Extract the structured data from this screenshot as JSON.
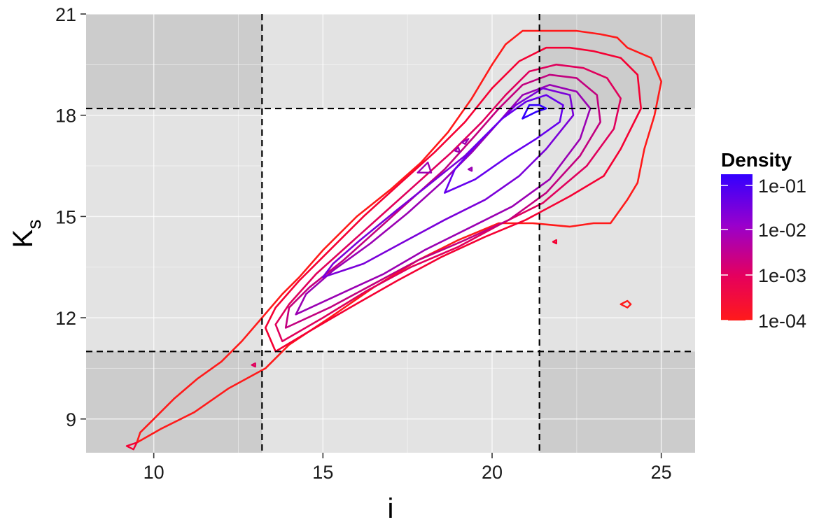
{
  "chart_data": {
    "type": "contour",
    "xlabel": "i",
    "ylabel": "K",
    "ylabel_subscript": "s",
    "xlim": [
      8,
      26
    ],
    "ylim": [
      8,
      21
    ],
    "x_ticks": [
      10,
      15,
      20,
      25
    ],
    "y_ticks": [
      9,
      12,
      15,
      18,
      21
    ],
    "grid": true,
    "reference_lines": {
      "vertical": [
        13.2,
        21.4
      ],
      "horizontal": [
        11.0,
        18.2
      ],
      "style": "dashed"
    },
    "shaded_regions": {
      "corner_color": "#cccccc",
      "edge_color": "#e3e3e3",
      "center_color": "#ffffff"
    },
    "legend": {
      "title": "Density",
      "position": "right",
      "labels": [
        "1e-01",
        "1e-02",
        "1e-03",
        "1e-04"
      ],
      "color_high": "#3300ff",
      "color_low": "#ff1a1a"
    },
    "contours": [
      {
        "level": "1e-04",
        "color": "#ff1a1a",
        "points": [
          [
            9.5,
            8.3
          ],
          [
            10.2,
            8.7
          ],
          [
            11.2,
            9.2
          ],
          [
            12.2,
            9.9
          ],
          [
            13.3,
            10.5
          ],
          [
            14.0,
            11.2
          ],
          [
            15.2,
            12.0
          ],
          [
            16.5,
            12.9
          ],
          [
            17.8,
            13.7
          ],
          [
            19.0,
            14.3
          ],
          [
            20.2,
            14.8
          ],
          [
            21.2,
            14.8
          ],
          [
            22.3,
            14.7
          ],
          [
            23.0,
            14.8
          ],
          [
            23.5,
            14.8
          ],
          [
            24.0,
            15.5
          ],
          [
            24.3,
            16.0
          ],
          [
            24.5,
            17.0
          ],
          [
            24.8,
            18.0
          ],
          [
            25.0,
            19.0
          ],
          [
            24.7,
            19.7
          ],
          [
            24.0,
            20.0
          ],
          [
            23.7,
            20.3
          ],
          [
            23.2,
            20.4
          ],
          [
            22.5,
            20.5
          ],
          [
            21.6,
            20.5
          ],
          [
            20.9,
            20.5
          ],
          [
            20.4,
            20.1
          ],
          [
            20.0,
            19.5
          ],
          [
            19.4,
            18.5
          ],
          [
            18.7,
            17.5
          ],
          [
            17.9,
            16.6
          ],
          [
            17.0,
            15.8
          ],
          [
            16.0,
            15.0
          ],
          [
            15.0,
            14.0
          ],
          [
            14.3,
            13.2
          ],
          [
            13.8,
            12.7
          ],
          [
            13.2,
            12.0
          ],
          [
            12.6,
            11.3
          ],
          [
            12.0,
            10.7
          ],
          [
            11.3,
            10.2
          ],
          [
            10.6,
            9.6
          ],
          [
            10.0,
            9.0
          ],
          [
            9.6,
            8.6
          ],
          [
            9.5,
            8.3
          ]
        ]
      },
      {
        "level": "1e-03",
        "color": "#f50033",
        "points": [
          [
            13.6,
            11.0
          ],
          [
            14.6,
            11.6
          ],
          [
            15.8,
            12.3
          ],
          [
            17.2,
            13.1
          ],
          [
            18.5,
            13.8
          ],
          [
            19.8,
            14.4
          ],
          [
            21.0,
            14.9
          ],
          [
            22.3,
            15.6
          ],
          [
            23.3,
            16.2
          ],
          [
            23.8,
            17.0
          ],
          [
            24.4,
            18.2
          ],
          [
            24.3,
            19.2
          ],
          [
            23.8,
            19.7
          ],
          [
            23.0,
            19.9
          ],
          [
            22.3,
            20.0
          ],
          [
            21.6,
            20.0
          ],
          [
            20.8,
            19.6
          ],
          [
            20.0,
            18.8
          ],
          [
            19.2,
            17.8
          ],
          [
            18.3,
            16.9
          ],
          [
            17.3,
            16.0
          ],
          [
            16.2,
            15.0
          ],
          [
            15.2,
            14.0
          ],
          [
            14.3,
            13.1
          ],
          [
            13.6,
            12.3
          ],
          [
            13.3,
            11.7
          ],
          [
            13.6,
            11.0
          ]
        ]
      },
      {
        "level": "3e-03",
        "color": "#e0005c",
        "points": [
          [
            13.8,
            11.3
          ],
          [
            15.0,
            12.0
          ],
          [
            16.3,
            12.8
          ],
          [
            17.6,
            13.5
          ],
          [
            19.0,
            14.1
          ],
          [
            20.3,
            14.8
          ],
          [
            21.5,
            15.4
          ],
          [
            22.8,
            16.5
          ],
          [
            23.6,
            17.6
          ],
          [
            23.8,
            18.5
          ],
          [
            23.4,
            19.1
          ],
          [
            22.7,
            19.4
          ],
          [
            21.9,
            19.5
          ],
          [
            21.1,
            19.3
          ],
          [
            20.4,
            18.6
          ],
          [
            19.7,
            17.8
          ],
          [
            18.8,
            16.9
          ],
          [
            17.8,
            16.0
          ],
          [
            16.8,
            15.1
          ],
          [
            15.8,
            14.2
          ],
          [
            14.8,
            13.3
          ],
          [
            14.0,
            12.4
          ],
          [
            13.6,
            11.8
          ],
          [
            13.8,
            11.3
          ]
        ]
      },
      {
        "level": "1e-02",
        "color": "#c2007f",
        "points": [
          [
            13.9,
            11.7
          ],
          [
            15.2,
            12.3
          ],
          [
            16.5,
            13.0
          ],
          [
            17.8,
            13.7
          ],
          [
            19.2,
            14.3
          ],
          [
            20.5,
            14.9
          ],
          [
            21.6,
            15.7
          ],
          [
            22.6,
            16.8
          ],
          [
            23.2,
            17.8
          ],
          [
            23.1,
            18.6
          ],
          [
            22.5,
            19.1
          ],
          [
            21.7,
            19.2
          ],
          [
            20.9,
            18.9
          ],
          [
            20.2,
            18.2
          ],
          [
            19.5,
            17.4
          ],
          [
            18.6,
            16.4
          ],
          [
            17.6,
            15.5
          ],
          [
            16.6,
            14.6
          ],
          [
            15.6,
            13.7
          ],
          [
            14.6,
            12.9
          ],
          [
            14.0,
            12.3
          ],
          [
            13.9,
            11.7
          ]
        ]
      },
      {
        "level": "3e-02",
        "color": "#9a00b3",
        "points": [
          [
            14.2,
            12.1
          ],
          [
            15.5,
            12.7
          ],
          [
            16.8,
            13.3
          ],
          [
            18.0,
            14.0
          ],
          [
            19.4,
            14.7
          ],
          [
            20.6,
            15.3
          ],
          [
            21.7,
            16.1
          ],
          [
            22.6,
            17.3
          ],
          [
            22.9,
            18.2
          ],
          [
            22.5,
            18.7
          ],
          [
            21.7,
            18.9
          ],
          [
            20.9,
            18.6
          ],
          [
            20.2,
            17.8
          ],
          [
            19.4,
            16.9
          ],
          [
            18.5,
            16.0
          ],
          [
            17.5,
            15.1
          ],
          [
            16.4,
            14.2
          ],
          [
            15.3,
            13.4
          ],
          [
            14.5,
            12.7
          ],
          [
            14.2,
            12.1
          ]
        ]
      },
      {
        "level": "5e-02",
        "color": "#7a00d9",
        "points": [
          [
            15.0,
            13.2
          ],
          [
            16.2,
            13.6
          ],
          [
            17.3,
            14.2
          ],
          [
            18.6,
            14.9
          ],
          [
            19.8,
            15.5
          ],
          [
            20.8,
            16.2
          ],
          [
            21.6,
            17.0
          ],
          [
            22.4,
            18.0
          ],
          [
            22.3,
            18.6
          ],
          [
            21.5,
            18.8
          ],
          [
            20.7,
            18.3
          ],
          [
            20.0,
            17.6
          ],
          [
            19.2,
            16.8
          ],
          [
            18.2,
            16.0
          ],
          [
            17.2,
            15.2
          ],
          [
            16.1,
            14.3
          ],
          [
            15.3,
            13.6
          ],
          [
            15.0,
            13.2
          ]
        ]
      },
      {
        "level": "7e-02",
        "color": "#6600ee",
        "points": [
          [
            18.6,
            15.7
          ],
          [
            19.5,
            16.1
          ],
          [
            20.5,
            16.8
          ],
          [
            21.3,
            17.3
          ],
          [
            22.0,
            17.8
          ],
          [
            22.1,
            18.3
          ],
          [
            21.6,
            18.6
          ],
          [
            21.0,
            18.4
          ],
          [
            20.3,
            17.9
          ],
          [
            19.6,
            17.2
          ],
          [
            18.9,
            16.4
          ],
          [
            18.6,
            15.7
          ]
        ]
      },
      {
        "level": "1e-01",
        "color": "#3300ff",
        "points": [
          [
            20.9,
            17.9
          ],
          [
            21.3,
            18.1
          ],
          [
            21.6,
            18.2
          ],
          [
            21.4,
            18.3
          ],
          [
            21.1,
            18.3
          ],
          [
            20.9,
            17.9
          ]
        ]
      }
    ],
    "islands": [
      {
        "color": "#f50033",
        "points": [
          [
            9.2,
            8.2
          ],
          [
            9.5,
            8.3
          ],
          [
            9.4,
            8.1
          ]
        ]
      },
      {
        "color": "#e0005c",
        "points": [
          [
            12.9,
            10.6
          ],
          [
            13.0,
            10.65
          ],
          [
            13.0,
            10.55
          ]
        ]
      },
      {
        "color": "#9a00b3",
        "points": [
          [
            17.8,
            16.3
          ],
          [
            18.1,
            16.6
          ],
          [
            18.2,
            16.3
          ]
        ]
      },
      {
        "color": "#9a00b3",
        "points": [
          [
            18.9,
            16.95
          ],
          [
            19.0,
            17.05
          ],
          [
            19.05,
            16.9
          ]
        ]
      },
      {
        "color": "#9a00b3",
        "points": [
          [
            19.1,
            17.2
          ],
          [
            19.3,
            17.3
          ],
          [
            19.2,
            17.15
          ]
        ]
      },
      {
        "color": "#9a00b3",
        "points": [
          [
            19.3,
            16.4
          ],
          [
            19.4,
            16.45
          ],
          [
            19.4,
            16.35
          ]
        ]
      },
      {
        "color": "#f50033",
        "points": [
          [
            21.8,
            14.25
          ],
          [
            21.9,
            14.3
          ],
          [
            21.9,
            14.2
          ]
        ]
      },
      {
        "color": "#ff1a1a",
        "points": [
          [
            23.8,
            12.4
          ],
          [
            24.0,
            12.5
          ],
          [
            24.1,
            12.4
          ],
          [
            24.0,
            12.3
          ]
        ]
      }
    ]
  }
}
